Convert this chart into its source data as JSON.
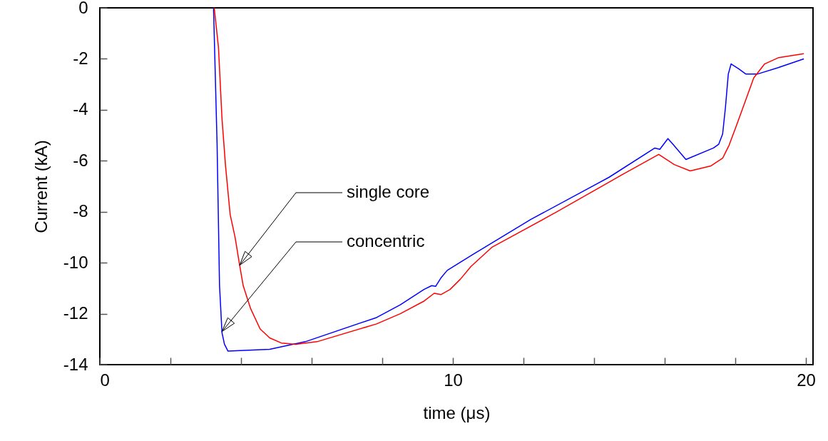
{
  "chart_data": {
    "type": "line",
    "xlabel": "time (μs)",
    "ylabel": "Current (kA)",
    "xlim": [
      0,
      20.2
    ],
    "ylim": [
      -14,
      0
    ],
    "xticks": [
      0,
      {
        "value": 2,
        "label": null
      },
      {
        "value": 4,
        "label": null
      },
      {
        "value": 6,
        "label": null
      },
      {
        "value": 8,
        "label": null
      },
      10,
      {
        "value": 12,
        "label": null
      },
      {
        "value": 14,
        "label": null
      },
      {
        "value": 16,
        "label": null
      },
      {
        "value": 18,
        "label": null
      },
      20
    ],
    "yticks": [
      -14,
      -12,
      -10,
      -8,
      -6,
      -4,
      -2,
      0
    ],
    "grid": false,
    "annotations": [
      {
        "text": "single core",
        "x": 3.96,
        "y": -10.1
      },
      {
        "text": "concentric",
        "x": 3.46,
        "y": -12.7
      }
    ],
    "series": [
      {
        "color": "#0000ff",
        "x": [
          3.22,
          3.32,
          3.39,
          3.46,
          3.53,
          3.63,
          4.81,
          5.82,
          7.84,
          8.51,
          9.18,
          9.4,
          9.51,
          9.66,
          9.84,
          10.54,
          12.21,
          14.42,
          15.72,
          15.86,
          16.09,
          16.23,
          16.6,
          17.38,
          17.53,
          17.64,
          17.72,
          17.8,
          17.88,
          18.1,
          18.3,
          18.62,
          19.2,
          19.94
        ],
        "values": [
          0,
          -5.3,
          -10.9,
          -12.75,
          -13.2,
          -13.47,
          -13.4,
          -13.1,
          -12.15,
          -11.65,
          -11.05,
          -10.9,
          -10.93,
          -10.6,
          -10.3,
          -9.7,
          -8.3,
          -6.65,
          -5.5,
          -5.55,
          -5.13,
          -5.35,
          -5.95,
          -5.5,
          -5.35,
          -4.95,
          -3.9,
          -2.6,
          -2.2,
          -2.4,
          -2.6,
          -2.6,
          -2.35,
          -2.0
        ]
      },
      {
        "color": "#ff0000",
        "x": [
          3.24,
          3.36,
          3.46,
          3.56,
          3.69,
          3.83,
          3.96,
          4.06,
          4.27,
          4.54,
          4.81,
          5.14,
          5.55,
          6.15,
          7.84,
          8.51,
          9.19,
          9.47,
          9.66,
          9.92,
          10.21,
          10.51,
          11.1,
          12.95,
          14.79,
          15.83,
          16.27,
          16.72,
          17.31,
          17.64,
          17.82,
          18.01,
          18.22,
          18.52,
          18.83,
          19.23,
          19.94
        ],
        "values": [
          0,
          -1.55,
          -4.35,
          -6.2,
          -8.1,
          -9.0,
          -10.1,
          -10.9,
          -11.8,
          -12.6,
          -12.95,
          -13.15,
          -13.2,
          -13.1,
          -12.4,
          -12.0,
          -11.5,
          -11.2,
          -11.25,
          -11.05,
          -10.65,
          -10.15,
          -9.4,
          -8.0,
          -6.55,
          -5.75,
          -6.15,
          -6.4,
          -6.2,
          -5.9,
          -5.4,
          -4.7,
          -3.9,
          -2.75,
          -2.2,
          -1.95,
          -1.8
        ]
      }
    ]
  }
}
